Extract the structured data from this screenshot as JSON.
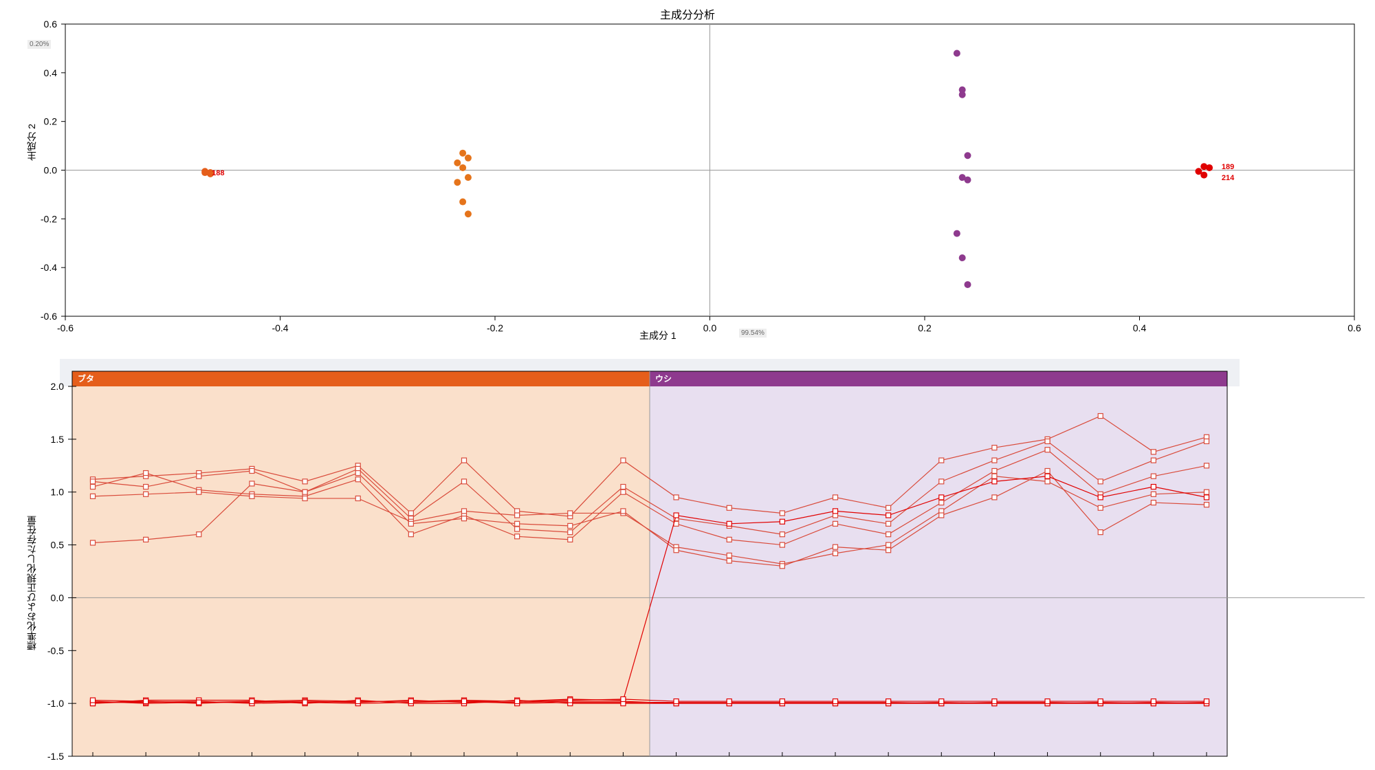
{
  "scatter": {
    "type": "scatter",
    "title": "主成分分析",
    "xlabel": "主成分 1",
    "ylabel": "主成分 2",
    "y_variance_label": "0.20%",
    "x_variance_label": "99.54%",
    "xlim": [
      -0.6,
      0.6
    ],
    "ylim": [
      -0.6,
      0.6
    ],
    "xtick_step": 0.2,
    "ytick_step": 0.2,
    "background_color": "#ffffff",
    "gridline_color": "#999999",
    "axis_color": "#000000",
    "point_radius": 5,
    "label_fontsize": 14,
    "title_fontsize": 16,
    "clusters": [
      {
        "color": "#e55e1b",
        "points": [
          {
            "x": -0.47,
            "y": -0.01
          },
          {
            "x": -0.47,
            "y": -0.005
          },
          {
            "x": -0.465,
            "y": -0.015
          },
          {
            "x": -0.465,
            "y": -0.01
          }
        ],
        "labels": [
          {
            "x": -0.47,
            "y": -0.01,
            "text": "188"
          }
        ]
      },
      {
        "color": "#e5741b",
        "points": [
          {
            "x": -0.23,
            "y": 0.07
          },
          {
            "x": -0.225,
            "y": 0.05
          },
          {
            "x": -0.235,
            "y": 0.03
          },
          {
            "x": -0.23,
            "y": 0.01
          },
          {
            "x": -0.225,
            "y": -0.03
          },
          {
            "x": -0.235,
            "y": -0.05
          },
          {
            "x": -0.23,
            "y": -0.13
          },
          {
            "x": -0.225,
            "y": -0.18
          }
        ]
      },
      {
        "color": "#8e3a8e",
        "points": [
          {
            "x": 0.23,
            "y": 0.48
          },
          {
            "x": 0.235,
            "y": 0.33
          },
          {
            "x": 0.235,
            "y": 0.31
          },
          {
            "x": 0.24,
            "y": 0.06
          },
          {
            "x": 0.235,
            "y": -0.03
          },
          {
            "x": 0.24,
            "y": -0.04
          },
          {
            "x": 0.23,
            "y": -0.26
          },
          {
            "x": 0.235,
            "y": -0.36
          },
          {
            "x": 0.24,
            "y": -0.47
          }
        ]
      },
      {
        "color": "#e00000",
        "points": [
          {
            "x": 0.46,
            "y": 0.015
          },
          {
            "x": 0.465,
            "y": 0.01
          },
          {
            "x": 0.455,
            "y": -0.005
          },
          {
            "x": 0.46,
            "y": -0.02
          }
        ],
        "labels": [
          {
            "x": 0.47,
            "y": 0.015,
            "text": "189"
          },
          {
            "x": 0.47,
            "y": -0.03,
            "text": "214"
          }
        ]
      }
    ]
  },
  "parallel": {
    "type": "line",
    "ylabel": "標準化および正規化した存在量",
    "ylim": [
      -1.5,
      2.0
    ],
    "ytick_step": 0.5,
    "x_count": 22,
    "background_color": "#ffffff",
    "gridline_color": "#999999",
    "axis_color": "#000000",
    "line_width": 1.2,
    "marker_size": 7,
    "label_fontsize": 14,
    "groups": [
      {
        "name": "ブタ",
        "header_color": "#e55e1b",
        "bg_color": "#f5c7a0",
        "x_range": [
          0,
          11
        ]
      },
      {
        "name": "ウシ",
        "header_color": "#8e3a8e",
        "bg_color": "#d6c5e3",
        "x_range": [
          11,
          22
        ]
      }
    ],
    "series": [
      {
        "color": "#d94a3a",
        "values": [
          1.12,
          1.15,
          1.18,
          1.22,
          1.1,
          1.25,
          0.8,
          1.3,
          0.82,
          0.77,
          1.3,
          0.95,
          0.85,
          0.8,
          0.95,
          0.85,
          1.3,
          1.42,
          1.5,
          1.72,
          1.38,
          1.52
        ]
      },
      {
        "color": "#d94a3a",
        "values": [
          1.1,
          1.05,
          1.15,
          1.2,
          1.0,
          1.22,
          0.75,
          1.1,
          0.65,
          0.62,
          1.05,
          0.75,
          0.68,
          0.6,
          0.78,
          0.7,
          1.1,
          1.3,
          1.48,
          1.1,
          1.3,
          1.48
        ]
      },
      {
        "color": "#d94a3a",
        "values": [
          1.05,
          1.18,
          1.02,
          0.98,
          0.96,
          1.12,
          0.6,
          0.78,
          0.58,
          0.55,
          1.0,
          0.7,
          0.55,
          0.5,
          0.7,
          0.6,
          0.9,
          1.2,
          1.4,
          0.98,
          1.15,
          1.25
        ]
      },
      {
        "color": "#d94a3a",
        "values": [
          0.96,
          0.98,
          1.0,
          0.96,
          0.94,
          0.94,
          0.72,
          0.82,
          0.78,
          0.8,
          0.8,
          0.48,
          0.4,
          0.32,
          0.42,
          0.5,
          0.82,
          1.15,
          1.1,
          0.85,
          0.98,
          1.0
        ]
      },
      {
        "color": "#d94a3a",
        "values": [
          0.52,
          0.55,
          0.6,
          1.08,
          1.0,
          1.18,
          0.7,
          0.75,
          0.7,
          0.68,
          0.82,
          0.45,
          0.35,
          0.3,
          0.48,
          0.45,
          0.78,
          0.95,
          1.2,
          0.62,
          0.9,
          0.88
        ]
      },
      {
        "color": "#e00000",
        "values": [
          -1.0,
          -0.98,
          -1.0,
          -0.98,
          -0.97,
          -0.98,
          -0.98,
          -0.97,
          -0.98,
          -0.96,
          -0.97,
          0.78,
          0.7,
          0.72,
          0.82,
          0.78,
          0.95,
          1.1,
          1.15,
          0.95,
          1.05,
          0.95
        ]
      },
      {
        "color": "#e00000",
        "values": [
          -0.98,
          -1.0,
          -0.99,
          -0.99,
          -0.98,
          -0.99,
          -0.97,
          -0.99,
          -0.99,
          -0.98,
          -0.98,
          -1.0,
          -1.0,
          -1.0,
          -1.0,
          -1.0,
          -0.99,
          -1.0,
          -1.0,
          -0.99,
          -1.0,
          -0.99
        ]
      },
      {
        "color": "#e00000",
        "values": [
          -0.99,
          -0.99,
          -0.98,
          -1.0,
          -0.99,
          -1.0,
          -0.99,
          -0.98,
          -1.0,
          -0.99,
          -0.99,
          -0.99,
          -0.99,
          -0.99,
          -0.99,
          -0.99,
          -1.0,
          -0.99,
          -0.99,
          -1.0,
          -0.99,
          -1.0
        ]
      },
      {
        "color": "#e00000",
        "values": [
          -1.0,
          -0.97,
          -0.97,
          -0.97,
          -1.0,
          -0.97,
          -1.0,
          -1.0,
          -0.97,
          -1.0,
          -1.0,
          -1.0,
          -1.0,
          -1.0,
          -1.0,
          -1.0,
          -1.0,
          -1.0,
          -1.0,
          -1.0,
          -1.0,
          -1.0
        ]
      },
      {
        "color": "#e00000",
        "values": [
          -0.97,
          -0.98,
          -0.99,
          -0.98,
          -0.99,
          -0.98,
          -0.98,
          -0.98,
          -0.98,
          -0.97,
          -0.96,
          -0.98,
          -0.98,
          -0.98,
          -0.98,
          -0.98,
          -0.98,
          -0.98,
          -0.98,
          -0.98,
          -0.98,
          -0.98
        ]
      }
    ]
  }
}
